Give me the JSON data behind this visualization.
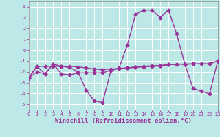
{
  "xlabel": "Windchill (Refroidissement éolien,°C)",
  "xlim": [
    0,
    23
  ],
  "ylim": [
    -5.5,
    4.5
  ],
  "yticks": [
    -5,
    -4,
    -3,
    -2,
    -1,
    0,
    1,
    2,
    3,
    4
  ],
  "xticks": [
    0,
    1,
    2,
    3,
    4,
    5,
    6,
    7,
    8,
    9,
    10,
    11,
    12,
    13,
    14,
    15,
    16,
    17,
    18,
    19,
    20,
    21,
    22,
    23
  ],
  "background_color": "#bde8e8",
  "grid_color": "#ffffff",
  "line_color": "#993399",
  "line1_y": [
    -2.6,
    -2.0,
    -2.2,
    -1.3,
    -1.5,
    -1.6,
    -2.0,
    -3.7,
    -4.7,
    -4.85,
    -1.9,
    -1.65,
    0.45,
    3.3,
    3.7,
    3.7,
    3.0,
    3.7,
    1.5,
    -1.3,
    -3.55,
    -3.8,
    -4.05,
    -1.0
  ],
  "line2_y": [
    -2.6,
    -1.5,
    -1.5,
    -1.5,
    -1.5,
    -1.5,
    -1.55,
    -1.65,
    -1.75,
    -1.8,
    -1.75,
    -1.7,
    -1.65,
    -1.55,
    -1.5,
    -1.45,
    -1.42,
    -1.35,
    -1.3,
    -1.3,
    -1.28,
    -1.28,
    -1.28,
    -1.0
  ],
  "line3_y": [
    -2.6,
    -1.5,
    -2.2,
    -1.3,
    -2.2,
    -2.3,
    -2.1,
    -2.1,
    -2.1,
    -2.1,
    -1.85,
    -1.7,
    -1.65,
    -1.6,
    -1.55,
    -1.5,
    -1.48,
    -1.35,
    -1.3,
    -1.3,
    -1.28,
    -1.28,
    -1.28,
    -1.0
  ],
  "marker": "D",
  "marker_size": 2.5,
  "line_width": 1.0,
  "tick_fontsize": 5.0,
  "xlabel_fontsize": 6.5,
  "tick_color": "#993399",
  "xlabel_color": "#993399"
}
